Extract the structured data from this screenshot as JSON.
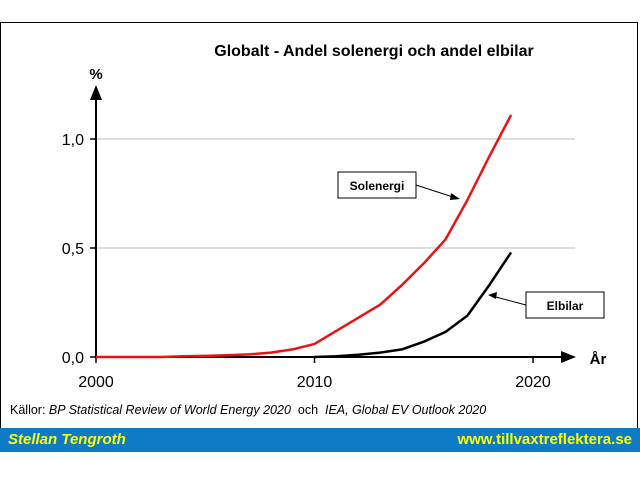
{
  "chart_data": {
    "type": "line",
    "title": "Globalt - Andel solenergi och andel elbilar",
    "xlabel": "År",
    "ylabel": "%",
    "xlim": [
      2000,
      2021
    ],
    "ylim": [
      0,
      1.2
    ],
    "x_ticks": [
      2000,
      2010,
      2020
    ],
    "x_tick_labels": [
      "2000",
      "2010",
      "2020"
    ],
    "y_ticks": [
      0.0,
      0.5,
      1.0
    ],
    "y_tick_labels": [
      "0,0",
      "0,5",
      "1,0"
    ],
    "grid": "horizontal",
    "series": [
      {
        "name": "Solenergi",
        "color": "#ee1111",
        "x": [
          2000,
          2001,
          2002,
          2003,
          2004,
          2005,
          2006,
          2007,
          2008,
          2009,
          2010,
          2011,
          2012,
          2013,
          2014,
          2015,
          2016,
          2017,
          2018,
          2019
        ],
        "values": [
          0.0,
          0.0,
          0.0,
          0.0,
          0.003,
          0.005,
          0.008,
          0.012,
          0.02,
          0.035,
          0.06,
          0.12,
          0.18,
          0.24,
          0.33,
          0.43,
          0.54,
          0.72,
          0.92,
          1.11
        ]
      },
      {
        "name": "Elbilar",
        "color": "#000000",
        "x": [
          2010,
          2011,
          2012,
          2013,
          2014,
          2015,
          2016,
          2017,
          2018,
          2019
        ],
        "values": [
          0.0,
          0.003,
          0.01,
          0.02,
          0.035,
          0.07,
          0.115,
          0.19,
          0.33,
          0.48
        ]
      }
    ],
    "annotations": [
      "Solenergi",
      "Elbilar"
    ]
  },
  "source_text": "Källor: BP Statistical Review of World Energy 2020  och  IEA, Global EV Outlook 2020",
  "source_prefix": "Källor: ",
  "source_1": "BP Statistical Review of World Energy 2020",
  "source_mid": "  och  ",
  "source_2": "IEA, Global EV Outlook 2020",
  "footer": {
    "author": "Stellan Tengroth",
    "website": "www.tillvaxtreflektera.se"
  },
  "colors": {
    "footer_bg": "#0f7bc6",
    "footer_text": "#ffff00",
    "grid": "#bbbbbb"
  }
}
